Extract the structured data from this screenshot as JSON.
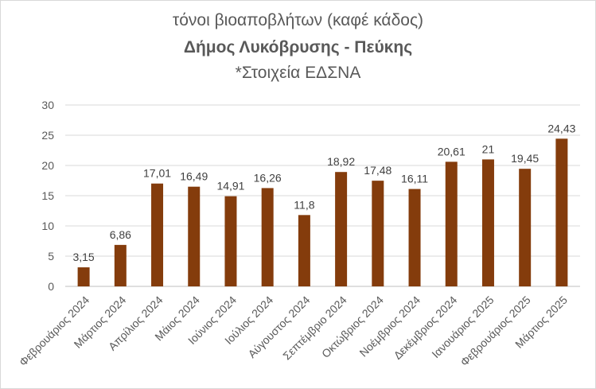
{
  "chart_data": {
    "type": "bar",
    "title": "τόνοι βιοαποβλήτων (καφέ κάδος)",
    "subtitle": "Δήμος Λυκόβρυσης - Πεύκης",
    "note": "*Στοιχεία ΕΔΣΝΑ",
    "categories": [
      "Φεβρουάριος 2024",
      "Μάρτιος 2024",
      "Απρίλιος 2024",
      "Μάιος 2024",
      "Ιούνιος 2024",
      "Ιούλιος 2024",
      "Αύγουστος 2024",
      "Σεπτέμβριο 2024",
      "Οκτώβριος 2024",
      "Νοέμβριος 2024",
      "Δεκέμβριος 2024",
      "Ιανουάριος 2025",
      "Φεβρουάριος 2025",
      "Μάρτιος 2025"
    ],
    "values": [
      3.15,
      6.86,
      17.01,
      16.49,
      14.91,
      16.26,
      11.8,
      18.92,
      17.48,
      16.11,
      20.61,
      21,
      19.45,
      24.43
    ],
    "value_labels": [
      "3,15",
      "6,86",
      "17,01",
      "16,49",
      "14,91",
      "16,26",
      "11,8",
      "18,92",
      "17,48",
      "16,11",
      "20,61",
      "21",
      "19,45",
      "24,43"
    ],
    "yticks": [
      0,
      5,
      10,
      15,
      20,
      25,
      30
    ],
    "ylim": [
      0,
      30
    ],
    "grid": true,
    "legend": "none",
    "bar_color": "#843C0C",
    "grid_color": "#d9d9d9"
  }
}
